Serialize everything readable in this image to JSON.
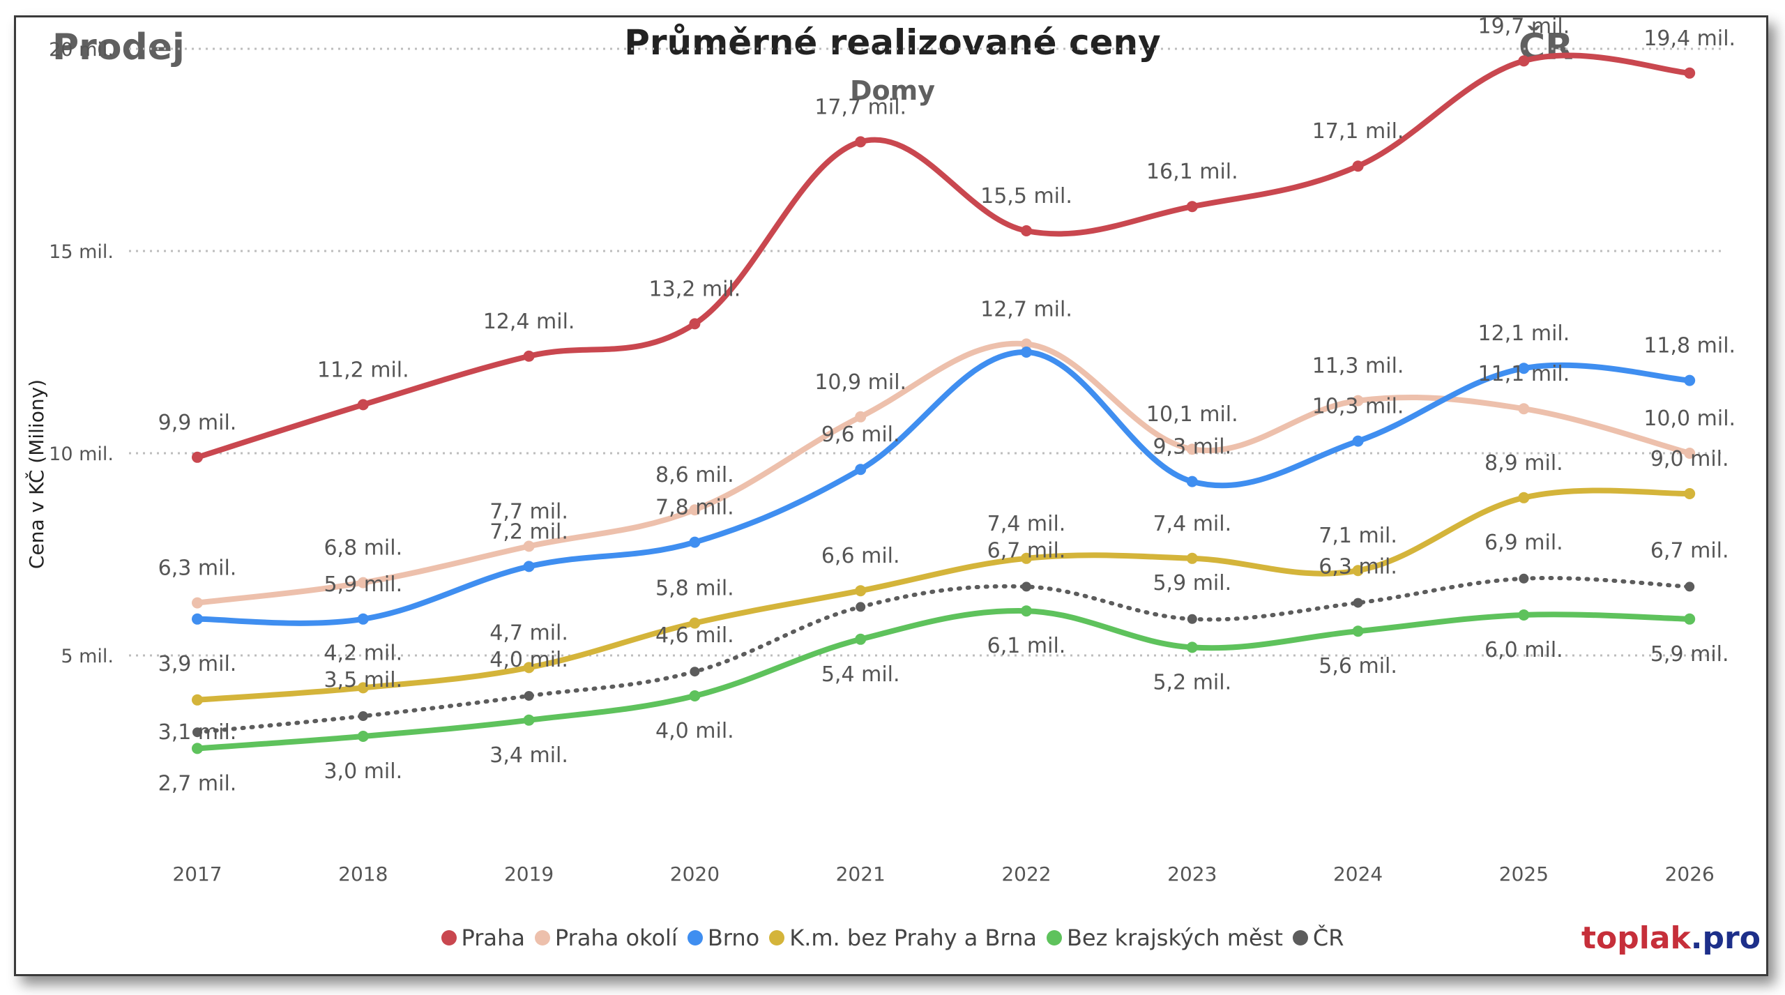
{
  "header": {
    "left_label": "Prodej",
    "right_label": "ČR",
    "title": "Průměrné realizované ceny",
    "subtitle": "Domy"
  },
  "brand": {
    "part1": "toplak",
    "part2": ".pro"
  },
  "chart_data": {
    "type": "line",
    "title": "Průměrné realizované ceny",
    "subtitle": "Domy",
    "xlabel": "",
    "ylabel": "Cena v KČ (Miliony)",
    "categories": [
      "2017",
      "2018",
      "2019",
      "2020",
      "2021",
      "2022",
      "2023",
      "2024",
      "2025",
      "2026"
    ],
    "ylim": [
      0,
      20.6
    ],
    "yticks": [
      {
        "value": 5,
        "label": "5 mil."
      },
      {
        "value": 10,
        "label": "10 mil."
      },
      {
        "value": 15,
        "label": "15 mil."
      },
      {
        "value": 20,
        "label": "20 mil."
      }
    ],
    "grid": true,
    "legend_position": "bottom",
    "series": [
      {
        "name": "Praha",
        "color": "#c9474f",
        "dotted": false,
        "values": [
          9.9,
          11.2,
          12.4,
          13.2,
          17.7,
          15.5,
          16.1,
          17.1,
          19.7,
          19.4
        ],
        "labels": [
          "9,9 mil.",
          "11,2 mil.",
          "12,4 mil.",
          "13,2 mil.",
          "17,7 mil.",
          "15,5 mil.",
          "16,1 mil.",
          "17,1 mil.",
          "19,7 mil.",
          "19,4 mil."
        ]
      },
      {
        "name": "Praha okolí",
        "color": "#edc0ac",
        "dotted": false,
        "values": [
          6.3,
          6.8,
          7.7,
          8.6,
          10.9,
          12.7,
          10.1,
          11.3,
          11.1,
          10.0
        ],
        "labels": [
          "6,3 mil.",
          "6,8 mil.",
          "7,7 mil.",
          "8,6 mil.",
          "10,9 mil.",
          "12,7 mil.",
          "10,1 mil.",
          "11,3 mil.",
          "11,1 mil.",
          "10,0 mil."
        ]
      },
      {
        "name": "Brno",
        "color": "#3f8ef0",
        "dotted": false,
        "values": [
          5.9,
          5.9,
          7.2,
          7.8,
          9.6,
          12.5,
          9.3,
          10.3,
          12.1,
          11.8
        ],
        "labels": [
          "",
          "5,9 mil.",
          "7,2 mil.",
          "7,8 mil.",
          "9,6 mil.",
          "",
          "9,3 mil.",
          "10,3 mil.",
          "12,1 mil.",
          "11,8 mil."
        ]
      },
      {
        "name": "K.m. bez Prahy a Brna",
        "color": "#d4b43a",
        "dotted": false,
        "values": [
          3.9,
          4.2,
          4.7,
          5.8,
          6.6,
          7.4,
          7.4,
          7.1,
          8.9,
          9.0
        ],
        "labels": [
          "3,9 mil.",
          "4,2 mil.",
          "4,7 mil.",
          "5,8 mil.",
          "6,6 mil.",
          "7,4 mil.",
          "7,4 mil.",
          "7,1 mil.",
          "8,9 mil.",
          "9,0 mil."
        ]
      },
      {
        "name": "Bez krajských měst",
        "color": "#5ec25c",
        "dotted": false,
        "values": [
          2.7,
          3.0,
          3.4,
          4.0,
          5.4,
          6.1,
          5.2,
          5.6,
          6.0,
          5.9
        ],
        "labels": [
          "2,7 mil.",
          "3,0 mil.",
          "3,4 mil.",
          "4,0 mil.",
          "5,4 mil.",
          "6,1 mil.",
          "5,2 mil.",
          "5,6 mil.",
          "6,0 mil.",
          "5,9 mil."
        ]
      },
      {
        "name": "ČR",
        "color": "#5c5c5c",
        "dotted": true,
        "values": [
          3.1,
          3.5,
          4.0,
          4.6,
          6.2,
          6.7,
          5.9,
          6.3,
          6.9,
          6.7
        ],
        "labels": [
          "3,1 mil.",
          "3,5 mil.",
          "4,0 mil.",
          "4,6 mil.",
          "",
          "6,7 mil.",
          "5,9 mil.",
          "6,3 mil.",
          "6,9 mil.",
          "6,7 mil."
        ]
      }
    ]
  }
}
